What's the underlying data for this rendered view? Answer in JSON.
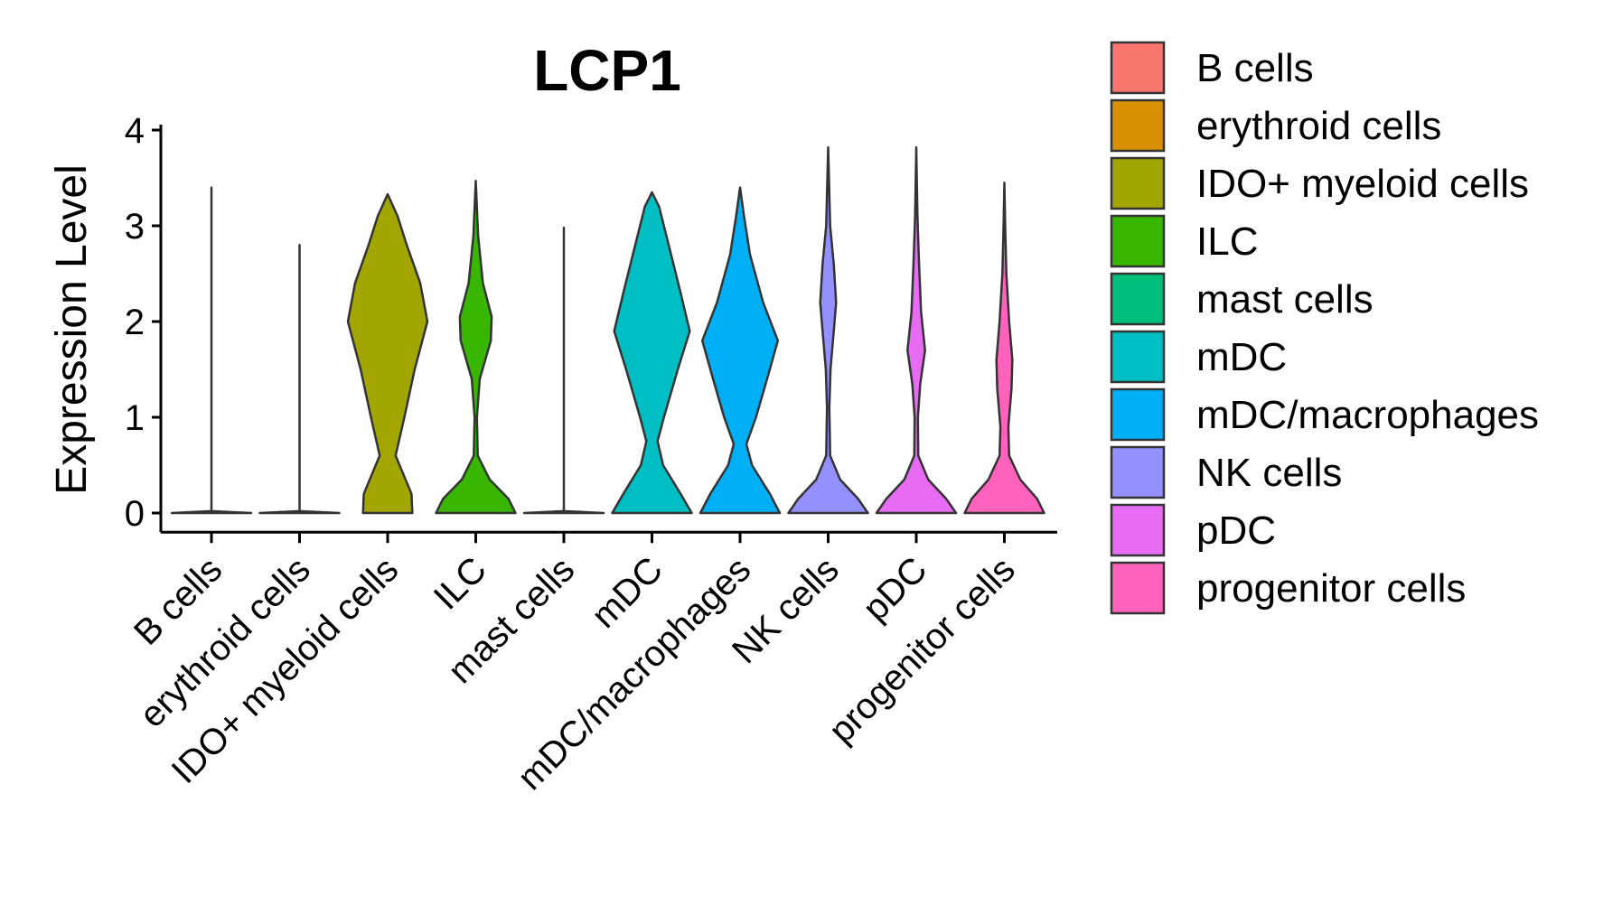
{
  "chart_data": {
    "type": "violin",
    "title": "LCP1",
    "xlabel": "",
    "ylabel": "Expression Level",
    "ylim": [
      -0.2,
      4.2
    ],
    "yticks": [
      0,
      1,
      2,
      3,
      4
    ],
    "legend_position": "right",
    "categories": [
      "B cells",
      "erythroid cells",
      "IDO+ myeloid cells",
      "ILC",
      "mast cells",
      "mDC",
      "mDC/macrophages",
      "NK cells",
      "pDC",
      "progenitor cells"
    ],
    "colors": [
      "#F8766D",
      "#D89000",
      "#A3A500",
      "#39B600",
      "#00BF7D",
      "#00BFC4",
      "#00B0F6",
      "#9590FF",
      "#E76BF3",
      "#FF62BC"
    ],
    "max_values": [
      3.4,
      2.8,
      3.33,
      3.47,
      2.98,
      3.35,
      3.4,
      3.82,
      3.82,
      3.45
    ],
    "density_profiles": [
      [
        [
          0,
          1.0
        ],
        [
          0.02,
          0
        ],
        [
          3.4,
          0
        ]
      ],
      [
        [
          0,
          1.0
        ],
        [
          0.02,
          0
        ],
        [
          2.8,
          0
        ]
      ],
      [
        [
          0,
          0.62
        ],
        [
          0.2,
          0.6
        ],
        [
          0.6,
          0.2
        ],
        [
          1.0,
          0.42
        ],
        [
          1.5,
          0.68
        ],
        [
          2.0,
          1.0
        ],
        [
          2.4,
          0.82
        ],
        [
          2.8,
          0.48
        ],
        [
          3.1,
          0.25
        ],
        [
          3.33,
          0
        ]
      ],
      [
        [
          0,
          1.0
        ],
        [
          0.15,
          0.82
        ],
        [
          0.35,
          0.35
        ],
        [
          0.6,
          0.05
        ],
        [
          1.0,
          0.03
        ],
        [
          1.4,
          0.1
        ],
        [
          1.8,
          0.38
        ],
        [
          2.05,
          0.4
        ],
        [
          2.4,
          0.18
        ],
        [
          2.9,
          0.06
        ],
        [
          3.47,
          0
        ]
      ],
      [
        [
          0,
          1.0
        ],
        [
          0.02,
          0
        ],
        [
          2.98,
          0
        ]
      ],
      [
        [
          0,
          1.0
        ],
        [
          0.2,
          0.72
        ],
        [
          0.5,
          0.28
        ],
        [
          0.75,
          0.14
        ],
        [
          1.0,
          0.3
        ],
        [
          1.5,
          0.65
        ],
        [
          1.9,
          0.95
        ],
        [
          2.3,
          0.72
        ],
        [
          2.8,
          0.42
        ],
        [
          3.2,
          0.18
        ],
        [
          3.35,
          0
        ]
      ],
      [
        [
          0,
          1.0
        ],
        [
          0.2,
          0.75
        ],
        [
          0.5,
          0.3
        ],
        [
          0.72,
          0.16
        ],
        [
          1.0,
          0.4
        ],
        [
          1.4,
          0.68
        ],
        [
          1.8,
          0.95
        ],
        [
          2.2,
          0.58
        ],
        [
          2.7,
          0.25
        ],
        [
          3.1,
          0.1
        ],
        [
          3.4,
          0
        ]
      ],
      [
        [
          0,
          1.0
        ],
        [
          0.15,
          0.75
        ],
        [
          0.35,
          0.3
        ],
        [
          0.6,
          0.05
        ],
        [
          1.1,
          0.03
        ],
        [
          1.5,
          0.06
        ],
        [
          1.9,
          0.14
        ],
        [
          2.2,
          0.2
        ],
        [
          2.6,
          0.14
        ],
        [
          3.0,
          0.05
        ],
        [
          3.82,
          0
        ]
      ],
      [
        [
          0,
          1.0
        ],
        [
          0.15,
          0.75
        ],
        [
          0.35,
          0.3
        ],
        [
          0.6,
          0.05
        ],
        [
          1.0,
          0.04
        ],
        [
          1.35,
          0.1
        ],
        [
          1.7,
          0.22
        ],
        [
          2.1,
          0.12
        ],
        [
          2.6,
          0.07
        ],
        [
          3.1,
          0.03
        ],
        [
          3.82,
          0
        ]
      ],
      [
        [
          0,
          1.0
        ],
        [
          0.15,
          0.82
        ],
        [
          0.35,
          0.4
        ],
        [
          0.6,
          0.12
        ],
        [
          0.9,
          0.1
        ],
        [
          1.3,
          0.18
        ],
        [
          1.6,
          0.2
        ],
        [
          2.0,
          0.12
        ],
        [
          2.5,
          0.05
        ],
        [
          3.0,
          0.02
        ],
        [
          3.45,
          0
        ]
      ]
    ]
  }
}
